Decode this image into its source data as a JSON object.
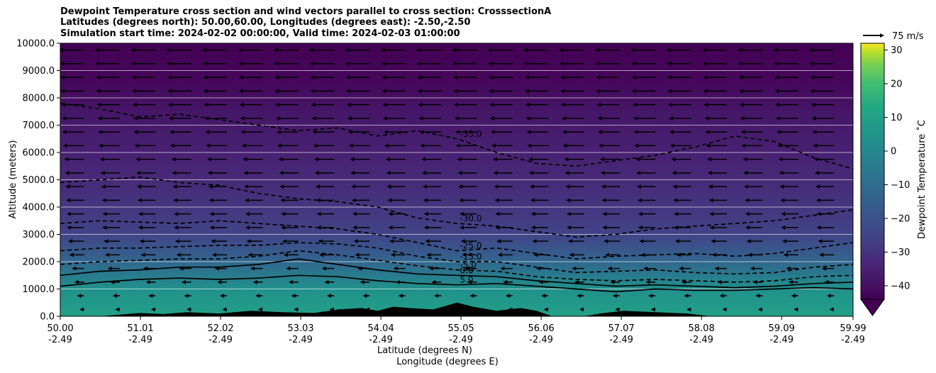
{
  "chart_data": {
    "type": "contour",
    "title_lines": [
      "Dewpoint Temperature cross section and wind vectors parallel to cross section: CrosssectionA",
      "Latitudes (degrees north): 50.00,60.00, Longitudes (degrees east): -2.50,-2.50",
      "Simulation start time: 2024-02-02 00:00:00, Valid time: 2024-02-03 01:00:00"
    ],
    "ylabel": "Altitude (meters)",
    "xlabel_lines": [
      "Latitude (degrees N)",
      "Longitude (degrees E)"
    ],
    "ylim": [
      0,
      10000
    ],
    "xlim": [
      50.0,
      59.99
    ],
    "y_ticks": [
      {
        "value": 0,
        "label": "0.0"
      },
      {
        "value": 1000,
        "label": "1000.0"
      },
      {
        "value": 2000,
        "label": "2000.0"
      },
      {
        "value": 3000,
        "label": "3000.0"
      },
      {
        "value": 4000,
        "label": "4000.0"
      },
      {
        "value": 5000,
        "label": "5000.0"
      },
      {
        "value": 6000,
        "label": "6000.0"
      },
      {
        "value": 7000,
        "label": "7000.0"
      },
      {
        "value": 8000,
        "label": "8000.0"
      },
      {
        "value": 9000,
        "label": "9000.0"
      },
      {
        "value": 10000,
        "label": "10000.0"
      }
    ],
    "x_ticks": [
      {
        "value": 50.0,
        "lat": "50.00",
        "lon": "-2.49"
      },
      {
        "value": 51.01,
        "lat": "51.01",
        "lon": "-2.49"
      },
      {
        "value": 52.02,
        "lat": "52.02",
        "lon": "-2.49"
      },
      {
        "value": 53.03,
        "lat": "53.03",
        "lon": "-2.49"
      },
      {
        "value": 54.04,
        "lat": "54.04",
        "lon": "-2.49"
      },
      {
        "value": 55.05,
        "lat": "55.05",
        "lon": "-2.49"
      },
      {
        "value": 56.06,
        "lat": "56.06",
        "lon": "-2.49"
      },
      {
        "value": 57.07,
        "lat": "57.07",
        "lon": "-2.49"
      },
      {
        "value": 58.08,
        "lat": "58.08",
        "lon": "-2.49"
      },
      {
        "value": 59.09,
        "lat": "59.09",
        "lon": "-2.49"
      },
      {
        "value": 59.99,
        "lat": "59.99",
        "lon": "-2.49"
      }
    ],
    "colorbar": {
      "label": "Dewpoint Temperature ˚C",
      "range": [
        -44,
        32
      ],
      "extend": "min",
      "colormap": "viridis",
      "ticks": [
        {
          "value": -40,
          "label": "−40"
        },
        {
          "value": -30,
          "label": "−30"
        },
        {
          "value": -20,
          "label": "−20"
        },
        {
          "value": -10,
          "label": "−10"
        },
        {
          "value": 0,
          "label": "0"
        },
        {
          "value": 10,
          "label": "10"
        },
        {
          "value": 20,
          "label": "20"
        },
        {
          "value": 30,
          "label": "30"
        }
      ]
    },
    "wind_key": {
      "label": "75 m/s"
    },
    "field_bands": [
      {
        "altitude": 0,
        "value": 10
      },
      {
        "altitude": 1000,
        "value": 4
      },
      {
        "altitude": 1500,
        "value": -5
      },
      {
        "altitude": 2200,
        "value": -15
      },
      {
        "altitude": 3000,
        "value": -25
      },
      {
        "altitude": 4500,
        "value": -31
      },
      {
        "altitude": 6000,
        "value": -35
      },
      {
        "altitude": 7500,
        "value": -38
      },
      {
        "altitude": 8500,
        "value": -42
      },
      {
        "altitude": 10000,
        "value": -44
      }
    ],
    "contours": [
      {
        "value": 5.0,
        "label": "5.0",
        "style": "solid",
        "points": [
          [
            50.0,
            1100
          ],
          [
            50.5,
            1250
          ],
          [
            51.0,
            1350
          ],
          [
            51.5,
            1400
          ],
          [
            52.0,
            1350
          ],
          [
            52.5,
            1400
          ],
          [
            53.0,
            1500
          ],
          [
            53.5,
            1450
          ],
          [
            54.0,
            1300
          ],
          [
            54.5,
            1200
          ],
          [
            55.0,
            1150
          ],
          [
            55.5,
            1200
          ],
          [
            56.0,
            1100
          ],
          [
            56.5,
            1000
          ],
          [
            57.0,
            900
          ],
          [
            57.5,
            1000
          ],
          [
            58.0,
            950
          ],
          [
            58.5,
            950
          ],
          [
            59.0,
            1000
          ],
          [
            59.5,
            1050
          ],
          [
            59.99,
            1000
          ]
        ]
      },
      {
        "value": 0.0,
        "label": "0.0",
        "style": "solid",
        "points": [
          [
            50.0,
            1500
          ],
          [
            50.5,
            1650
          ],
          [
            51.0,
            1700
          ],
          [
            51.5,
            1800
          ],
          [
            52.0,
            1800
          ],
          [
            52.5,
            1900
          ],
          [
            53.0,
            2100
          ],
          [
            53.5,
            1900
          ],
          [
            54.0,
            1700
          ],
          [
            54.5,
            1550
          ],
          [
            55.0,
            1500
          ],
          [
            55.5,
            1450
          ],
          [
            56.0,
            1300
          ],
          [
            56.5,
            1200
          ],
          [
            57.0,
            1100
          ],
          [
            57.5,
            1150
          ],
          [
            58.0,
            1100
          ],
          [
            58.5,
            1050
          ],
          [
            59.0,
            1100
          ],
          [
            59.5,
            1200
          ],
          [
            59.99,
            1250
          ]
        ]
      },
      {
        "value": -5.0,
        "label": "-5.0",
        "style": "dashed",
        "points": [
          [
            50.0,
            1900
          ],
          [
            50.5,
            2000
          ],
          [
            51.0,
            2050
          ],
          [
            51.5,
            2100
          ],
          [
            52.0,
            2100
          ],
          [
            52.5,
            2200
          ],
          [
            53.0,
            2400
          ],
          [
            53.5,
            2250
          ],
          [
            54.0,
            2050
          ],
          [
            54.5,
            1850
          ],
          [
            55.0,
            1700
          ],
          [
            55.5,
            1650
          ],
          [
            56.0,
            1450
          ],
          [
            56.5,
            1350
          ],
          [
            57.0,
            1300
          ],
          [
            57.5,
            1350
          ],
          [
            58.0,
            1300
          ],
          [
            58.5,
            1250
          ],
          [
            59.0,
            1300
          ],
          [
            59.5,
            1450
          ],
          [
            59.99,
            1500
          ]
        ]
      },
      {
        "value": -15.0,
        "label": "-15.0",
        "style": "dashed",
        "points": [
          [
            50.0,
            2400
          ],
          [
            50.5,
            2500
          ],
          [
            51.0,
            2500
          ],
          [
            51.5,
            2550
          ],
          [
            52.0,
            2600
          ],
          [
            52.5,
            2600
          ],
          [
            53.0,
            2700
          ],
          [
            53.5,
            2650
          ],
          [
            54.0,
            2500
          ],
          [
            54.5,
            2200
          ],
          [
            55.0,
            2000
          ],
          [
            55.5,
            2000
          ],
          [
            56.0,
            1800
          ],
          [
            56.5,
            1600
          ],
          [
            57.0,
            1650
          ],
          [
            57.5,
            1700
          ],
          [
            58.0,
            1600
          ],
          [
            58.5,
            1550
          ],
          [
            59.0,
            1600
          ],
          [
            59.5,
            1800
          ],
          [
            59.99,
            1900
          ]
        ]
      },
      {
        "value": -25.0,
        "label": "-25.0",
        "style": "dashed",
        "points": [
          [
            50.0,
            3400
          ],
          [
            50.5,
            3500
          ],
          [
            51.0,
            3450
          ],
          [
            51.5,
            3400
          ],
          [
            52.0,
            3500
          ],
          [
            52.5,
            3400
          ],
          [
            53.0,
            3300
          ],
          [
            53.5,
            3200
          ],
          [
            54.0,
            3000
          ],
          [
            54.5,
            2700
          ],
          [
            55.0,
            2400
          ],
          [
            55.5,
            2500
          ],
          [
            56.0,
            2300
          ],
          [
            56.5,
            2100
          ],
          [
            57.0,
            2200
          ],
          [
            57.5,
            2250
          ],
          [
            58.0,
            2300
          ],
          [
            58.5,
            2200
          ],
          [
            59.0,
            2300
          ],
          [
            59.5,
            2500
          ],
          [
            59.99,
            2700
          ]
        ]
      },
      {
        "value": -30.0,
        "label": "-30.0",
        "style": "dashed",
        "points": [
          [
            50.0,
            4900
          ],
          [
            50.5,
            5000
          ],
          [
            51.0,
            5100
          ],
          [
            51.5,
            4900
          ],
          [
            52.0,
            4800
          ],
          [
            52.5,
            4500
          ],
          [
            53.0,
            4300
          ],
          [
            53.5,
            4200
          ],
          [
            54.0,
            4000
          ],
          [
            54.5,
            3600
          ],
          [
            55.0,
            3400
          ],
          [
            55.5,
            3300
          ],
          [
            56.0,
            3100
          ],
          [
            56.5,
            2900
          ],
          [
            57.0,
            3000
          ],
          [
            57.5,
            3200
          ],
          [
            58.0,
            3300
          ],
          [
            58.5,
            3400
          ],
          [
            59.0,
            3500
          ],
          [
            59.5,
            3700
          ],
          [
            59.99,
            3900
          ]
        ]
      },
      {
        "value": -35.0,
        "label": "-35.0",
        "style": "dashed",
        "points": [
          [
            50.0,
            7800
          ],
          [
            50.5,
            7600
          ],
          [
            51.0,
            7300
          ],
          [
            51.5,
            7400
          ],
          [
            52.0,
            7200
          ],
          [
            52.5,
            7000
          ],
          [
            53.0,
            6800
          ],
          [
            53.5,
            6900
          ],
          [
            54.0,
            6600
          ],
          [
            54.5,
            6800
          ],
          [
            55.0,
            6500
          ],
          [
            55.5,
            6000
          ],
          [
            56.0,
            5600
          ],
          [
            56.5,
            5500
          ],
          [
            57.0,
            5700
          ],
          [
            57.5,
            5900
          ],
          [
            58.0,
            6200
          ],
          [
            58.5,
            6600
          ],
          [
            59.0,
            6400
          ],
          [
            59.5,
            5800
          ],
          [
            59.99,
            5400
          ]
        ]
      }
    ],
    "wind_arrows": {
      "u_by_altitude": [
        {
          "altitude": 250,
          "u": -6
        },
        {
          "altitude": 750,
          "u": -10
        },
        {
          "altitude": 1250,
          "u": -14
        },
        {
          "altitude": 1750,
          "u": -18
        },
        {
          "altitude": 2250,
          "u": -22
        },
        {
          "altitude": 2750,
          "u": -24
        },
        {
          "altitude": 3250,
          "u": -26
        },
        {
          "altitude": 3750,
          "u": -26
        },
        {
          "altitude": 4250,
          "u": -27
        },
        {
          "altitude": 4750,
          "u": -28
        },
        {
          "altitude": 5250,
          "u": -29
        },
        {
          "altitude": 5750,
          "u": -30
        },
        {
          "altitude": 6250,
          "u": -32
        },
        {
          "altitude": 6750,
          "u": -33
        },
        {
          "altitude": 7250,
          "u": -34
        },
        {
          "altitude": 7750,
          "u": -35
        },
        {
          "altitude": 8250,
          "u": -36
        },
        {
          "altitude": 8750,
          "u": -36
        },
        {
          "altitude": 9250,
          "u": -37
        },
        {
          "altitude": 9750,
          "u": -38
        }
      ],
      "latitudes": [
        50.3,
        50.75,
        51.2,
        51.65,
        52.1,
        52.55,
        53.0,
        53.45,
        53.9,
        54.35,
        54.8,
        55.25,
        55.7,
        56.15,
        56.6,
        57.05,
        57.5,
        57.95,
        58.4,
        58.85,
        59.3,
        59.75
      ]
    },
    "terrain": [
      [
        50.0,
        0
      ],
      [
        50.5,
        0
      ],
      [
        50.7,
        50
      ],
      [
        51.0,
        120
      ],
      [
        51.3,
        80
      ],
      [
        51.6,
        150
      ],
      [
        52.0,
        100
      ],
      [
        52.4,
        200
      ],
      [
        52.8,
        150
      ],
      [
        53.2,
        120
      ],
      [
        53.5,
        250
      ],
      [
        53.8,
        300
      ],
      [
        54.0,
        200
      ],
      [
        54.2,
        350
      ],
      [
        54.4,
        300
      ],
      [
        54.7,
        250
      ],
      [
        55.0,
        500
      ],
      [
        55.2,
        350
      ],
      [
        55.5,
        200
      ],
      [
        55.8,
        300
      ],
      [
        56.0,
        200
      ],
      [
        56.2,
        0
      ],
      [
        56.6,
        0
      ],
      [
        56.8,
        100
      ],
      [
        57.1,
        200
      ],
      [
        57.5,
        150
      ],
      [
        57.9,
        100
      ],
      [
        58.2,
        0
      ],
      [
        59.99,
        0
      ]
    ]
  }
}
